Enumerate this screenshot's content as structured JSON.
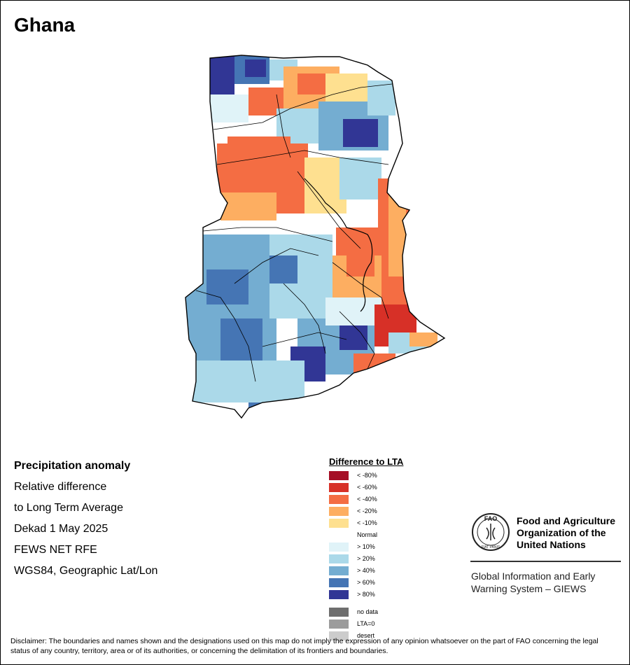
{
  "title": "Ghana",
  "info": {
    "heading": "Precipitation anomaly",
    "line1": "Relative difference",
    "line2": "to Long Term Average",
    "line3": "Dekad 1 May 2025",
    "line4": "FEWS NET RFE",
    "line5": "WGS84, Geographic Lat/Lon"
  },
  "legend": {
    "title": "Difference to LTA",
    "items": [
      {
        "label": "< -80%",
        "color": "#a50f26"
      },
      {
        "label": "< -60%",
        "color": "#d73027"
      },
      {
        "label": "< -40%",
        "color": "#f46d43"
      },
      {
        "label": "< -20%",
        "color": "#fdae61"
      },
      {
        "label": "< -10%",
        "color": "#fee090"
      },
      {
        "label": "Normal",
        "color": "#ffffff"
      },
      {
        "label": "> 10%",
        "color": "#e0f3f8"
      },
      {
        "label": "> 20%",
        "color": "#abd9e9"
      },
      {
        "label": "> 40%",
        "color": "#74add1"
      },
      {
        "label": "> 60%",
        "color": "#4575b4"
      },
      {
        "label": "> 80%",
        "color": "#313695"
      }
    ],
    "special": [
      {
        "label": "no data",
        "color": "#6e6e6e"
      },
      {
        "label": "LTA=0",
        "color": "#9c9c9c"
      },
      {
        "label": "desert",
        "color": "#cccccc"
      }
    ]
  },
  "fao": {
    "logo_text": "FAO",
    "logo_motto": "FIAT PANIS",
    "name_line1": "Food and Agriculture",
    "name_line2": "Organization of the",
    "name_line3": "United Nations",
    "giews_line1": "Global Information and Early",
    "giews_line2": "Warning System – GIEWS"
  },
  "disclaimer": "Disclaimer: The boundaries and names shown and the designations used on this map do not imply the expression of any opinion whatsoever on the part of FAO concerning the legal status of any country, territory, area or of its authorities, or concerning the delimitation of its frontiers and boundaries."
}
